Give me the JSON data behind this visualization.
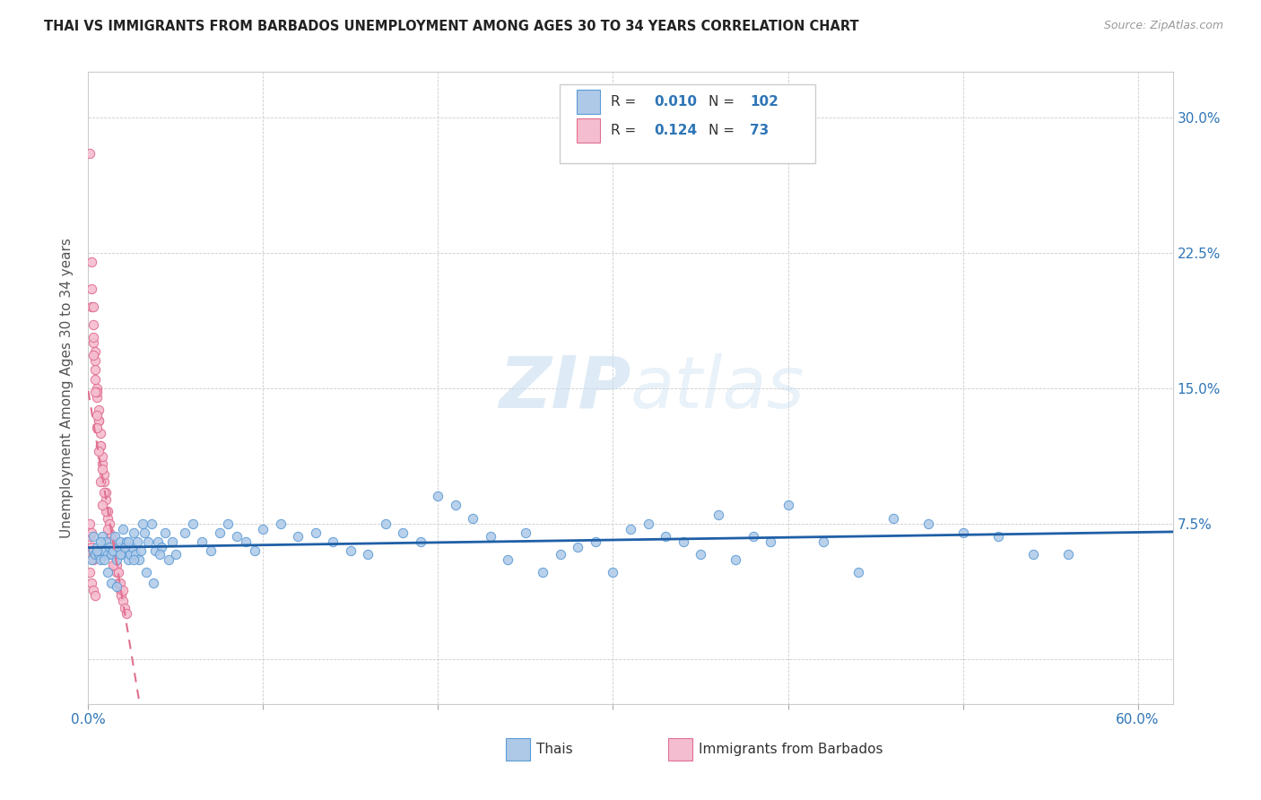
{
  "title": "THAI VS IMMIGRANTS FROM BARBADOS UNEMPLOYMENT AMONG AGES 30 TO 34 YEARS CORRELATION CHART",
  "source": "Source: ZipAtlas.com",
  "ylabel": "Unemployment Among Ages 30 to 34 years",
  "xlim": [
    0.0,
    0.62
  ],
  "ylim": [
    -0.025,
    0.325
  ],
  "xticks": [
    0.0,
    0.1,
    0.2,
    0.3,
    0.4,
    0.5,
    0.6
  ],
  "xtick_labels": [
    "0.0%",
    "",
    "",
    "",
    "",
    "",
    "60.0%"
  ],
  "yticks": [
    0.0,
    0.075,
    0.15,
    0.225,
    0.3
  ],
  "ytick_labels": [
    "",
    "7.5%",
    "15.0%",
    "22.5%",
    "30.0%"
  ],
  "thai_color": "#aec9e8",
  "thai_edge_color": "#5b9bd5",
  "barbados_color": "#f5bdd0",
  "barbados_edge_color": "#e07090",
  "trend_line_color_thai": "#1f5fa6",
  "trend_line_color_barbados": "#e07090",
  "watermark_zip": "ZIP",
  "watermark_atlas": "atlas",
  "legend_r_thai": "0.010",
  "legend_n_thai": "102",
  "legend_r_barbados": "0.124",
  "legend_n_barbados": "73",
  "legend_label_thai": "Thais",
  "legend_label_barbados": "Immigrants from Barbados",
  "thai_x": [
    0.002,
    0.003,
    0.004,
    0.005,
    0.006,
    0.007,
    0.008,
    0.009,
    0.01,
    0.011,
    0.012,
    0.013,
    0.014,
    0.015,
    0.016,
    0.017,
    0.018,
    0.019,
    0.02,
    0.021,
    0.022,
    0.023,
    0.024,
    0.025,
    0.026,
    0.027,
    0.028,
    0.029,
    0.03,
    0.032,
    0.034,
    0.036,
    0.038,
    0.04,
    0.042,
    0.044,
    0.046,
    0.048,
    0.05,
    0.055,
    0.06,
    0.065,
    0.07,
    0.075,
    0.08,
    0.085,
    0.09,
    0.095,
    0.1,
    0.11,
    0.12,
    0.13,
    0.14,
    0.15,
    0.16,
    0.17,
    0.18,
    0.19,
    0.2,
    0.21,
    0.22,
    0.23,
    0.24,
    0.25,
    0.26,
    0.27,
    0.28,
    0.29,
    0.3,
    0.31,
    0.32,
    0.33,
    0.34,
    0.35,
    0.36,
    0.37,
    0.38,
    0.39,
    0.4,
    0.42,
    0.44,
    0.46,
    0.48,
    0.5,
    0.52,
    0.54,
    0.56,
    0.003,
    0.005,
    0.007,
    0.009,
    0.011,
    0.013,
    0.016,
    0.018,
    0.021,
    0.023,
    0.026,
    0.031,
    0.033,
    0.037,
    0.041
  ],
  "thai_y": [
    0.055,
    0.06,
    0.058,
    0.062,
    0.058,
    0.055,
    0.068,
    0.06,
    0.065,
    0.058,
    0.062,
    0.058,
    0.06,
    0.068,
    0.055,
    0.062,
    0.065,
    0.058,
    0.072,
    0.06,
    0.065,
    0.055,
    0.058,
    0.062,
    0.07,
    0.058,
    0.065,
    0.055,
    0.06,
    0.07,
    0.065,
    0.075,
    0.06,
    0.065,
    0.062,
    0.07,
    0.055,
    0.065,
    0.058,
    0.07,
    0.075,
    0.065,
    0.06,
    0.07,
    0.075,
    0.068,
    0.065,
    0.06,
    0.072,
    0.075,
    0.068,
    0.07,
    0.065,
    0.06,
    0.058,
    0.075,
    0.07,
    0.065,
    0.09,
    0.085,
    0.078,
    0.068,
    0.055,
    0.07,
    0.048,
    0.058,
    0.062,
    0.065,
    0.048,
    0.072,
    0.075,
    0.068,
    0.065,
    0.058,
    0.08,
    0.055,
    0.068,
    0.065,
    0.085,
    0.065,
    0.048,
    0.078,
    0.075,
    0.07,
    0.068,
    0.058,
    0.058,
    0.068,
    0.06,
    0.065,
    0.055,
    0.048,
    0.042,
    0.04,
    0.058,
    0.062,
    0.065,
    0.055,
    0.075,
    0.048,
    0.042,
    0.058
  ],
  "barbados_x": [
    0.001,
    0.002,
    0.002,
    0.003,
    0.003,
    0.004,
    0.004,
    0.005,
    0.005,
    0.006,
    0.006,
    0.007,
    0.007,
    0.008,
    0.008,
    0.009,
    0.009,
    0.01,
    0.01,
    0.011,
    0.011,
    0.012,
    0.012,
    0.013,
    0.013,
    0.014,
    0.014,
    0.015,
    0.015,
    0.016,
    0.016,
    0.017,
    0.017,
    0.018,
    0.018,
    0.019,
    0.02,
    0.02,
    0.021,
    0.022,
    0.003,
    0.004,
    0.005,
    0.006,
    0.007,
    0.008,
    0.009,
    0.01,
    0.011,
    0.012,
    0.013,
    0.014,
    0.002,
    0.003,
    0.004,
    0.005,
    0.006,
    0.007,
    0.008,
    0.003,
    0.004,
    0.005,
    0.002,
    0.003,
    0.001,
    0.002,
    0.003,
    0.004,
    0.001,
    0.002,
    0.003,
    0.001,
    0.002
  ],
  "barbados_y": [
    0.28,
    0.22,
    0.195,
    0.175,
    0.195,
    0.16,
    0.17,
    0.145,
    0.15,
    0.132,
    0.138,
    0.118,
    0.125,
    0.108,
    0.112,
    0.098,
    0.102,
    0.088,
    0.092,
    0.078,
    0.082,
    0.07,
    0.075,
    0.062,
    0.068,
    0.058,
    0.062,
    0.052,
    0.058,
    0.048,
    0.052,
    0.042,
    0.048,
    0.038,
    0.042,
    0.035,
    0.032,
    0.038,
    0.028,
    0.025,
    0.185,
    0.165,
    0.148,
    0.132,
    0.118,
    0.105,
    0.092,
    0.082,
    0.072,
    0.065,
    0.058,
    0.052,
    0.205,
    0.178,
    0.155,
    0.135,
    0.115,
    0.098,
    0.085,
    0.168,
    0.148,
    0.128,
    0.062,
    0.058,
    0.048,
    0.042,
    0.038,
    0.035,
    0.068,
    0.062,
    0.055,
    0.075,
    0.07
  ]
}
